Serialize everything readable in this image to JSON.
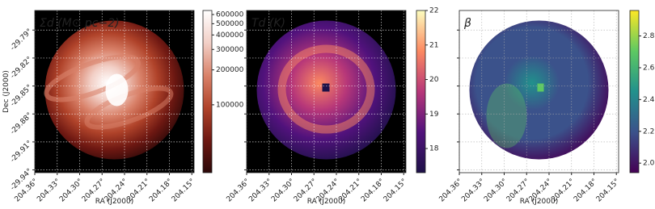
{
  "chart_data": [
    {
      "type": "image",
      "title": "Σd (M⊙ pc−2)",
      "xlabel": "RA (J2000)",
      "ylabel": "Dec (J2000)",
      "xlim": [
        204.36,
        204.147
      ],
      "xticks": [
        {
          "value": 204.36,
          "label": "204.36°"
        },
        {
          "value": 204.33,
          "label": "204.33°"
        },
        {
          "value": 204.3,
          "label": "204.30°"
        },
        {
          "value": 204.27,
          "label": "204.27°"
        },
        {
          "value": 204.24,
          "label": "204.24°"
        },
        {
          "value": 204.21,
          "label": "204.21°"
        },
        {
          "value": 204.18,
          "label": "204.18°"
        },
        {
          "value": 204.15,
          "label": "204.15°"
        }
      ],
      "ylim": [
        -29.943,
        -29.769
      ],
      "yticks": [
        {
          "value": -29.79,
          "label": "-29.79°"
        },
        {
          "value": -29.82,
          "label": "-29.82°"
        },
        {
          "value": -29.85,
          "label": "-29.85°"
        },
        {
          "value": -29.88,
          "label": "-29.88°"
        },
        {
          "value": -29.91,
          "label": "-29.91°"
        },
        {
          "value": -29.94,
          "label": "-29.94°"
        }
      ],
      "ytick_labels": true,
      "grid": true,
      "background": "#000000",
      "colorbar": {
        "scale": "log",
        "lim": [
          26000,
          650000
        ],
        "ticks": [
          100000,
          200000,
          300000,
          400000,
          500000,
          600000
        ],
        "colors": [
          "#2b0808",
          "#6e1812",
          "#b0432a",
          "#d9826a",
          "#f2cfc6",
          "#ffffff"
        ]
      }
    },
    {
      "type": "image",
      "title": "Td (K)",
      "xlabel": "RA (J2000)",
      "xlim": [
        204.36,
        204.147
      ],
      "xticks": [
        {
          "value": 204.36,
          "label": "204.36°"
        },
        {
          "value": 204.33,
          "label": "204.33°"
        },
        {
          "value": 204.3,
          "label": "204.30°"
        },
        {
          "value": 204.27,
          "label": "204.27°"
        },
        {
          "value": 204.24,
          "label": "204.24°"
        },
        {
          "value": 204.21,
          "label": "204.21°"
        },
        {
          "value": 204.18,
          "label": "204.18°"
        },
        {
          "value": 204.15,
          "label": "204.15°"
        }
      ],
      "ylim": [
        -29.943,
        -29.769
      ],
      "yticks": [
        -29.79,
        -29.82,
        -29.85,
        -29.88,
        -29.91,
        -29.94
      ],
      "ytick_labels": false,
      "grid": true,
      "background": "#000000",
      "colorbar": {
        "scale": "linear",
        "lim": [
          17.3,
          22
        ],
        "ticks": [
          18,
          19,
          20,
          21,
          22
        ],
        "colors": [
          "#1d1147",
          "#51127c",
          "#b73779",
          "#fc8961",
          "#fcfdbf"
        ]
      }
    },
    {
      "type": "image",
      "title": "β",
      "xlabel": "RA (J2000)",
      "xlim": [
        204.36,
        204.147
      ],
      "xticks": [
        {
          "value": 204.36,
          "label": "204.36°"
        },
        {
          "value": 204.33,
          "label": "204.33°"
        },
        {
          "value": 204.3,
          "label": "204.30°"
        },
        {
          "value": 204.27,
          "label": "204.27°"
        },
        {
          "value": 204.24,
          "label": "204.24°"
        },
        {
          "value": 204.21,
          "label": "204.21°"
        },
        {
          "value": 204.18,
          "label": "204.18°"
        },
        {
          "value": 204.15,
          "label": "204.15°"
        }
      ],
      "ylim": [
        -29.943,
        -29.769
      ],
      "yticks": [
        -29.79,
        -29.82,
        -29.85,
        -29.88,
        -29.91,
        -29.94
      ],
      "ytick_labels": false,
      "grid": true,
      "background": "#ffffff",
      "colorbar": {
        "scale": "linear",
        "lim": [
          1.94,
          2.96
        ],
        "ticks": [
          {
            "value": 2,
            "label": "2.0"
          },
          {
            "value": 2.2,
            "label": "2.2"
          },
          {
            "value": 2.4,
            "label": "2.4"
          },
          {
            "value": 2.6,
            "label": "2.6"
          },
          {
            "value": 2.8,
            "label": "2.8"
          }
        ],
        "colors": [
          "#440154",
          "#3b528b",
          "#21918c",
          "#5ec962",
          "#fde725"
        ]
      }
    }
  ]
}
